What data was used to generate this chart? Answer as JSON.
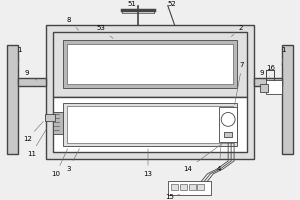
{
  "bg_color": "#efefef",
  "line_color": "#666666",
  "dark_line": "#444444",
  "gray_fill": "#c8c8c8",
  "light_gray": "#e0e0e0",
  "med_gray": "#b8b8b8",
  "white": "#ffffff"
}
